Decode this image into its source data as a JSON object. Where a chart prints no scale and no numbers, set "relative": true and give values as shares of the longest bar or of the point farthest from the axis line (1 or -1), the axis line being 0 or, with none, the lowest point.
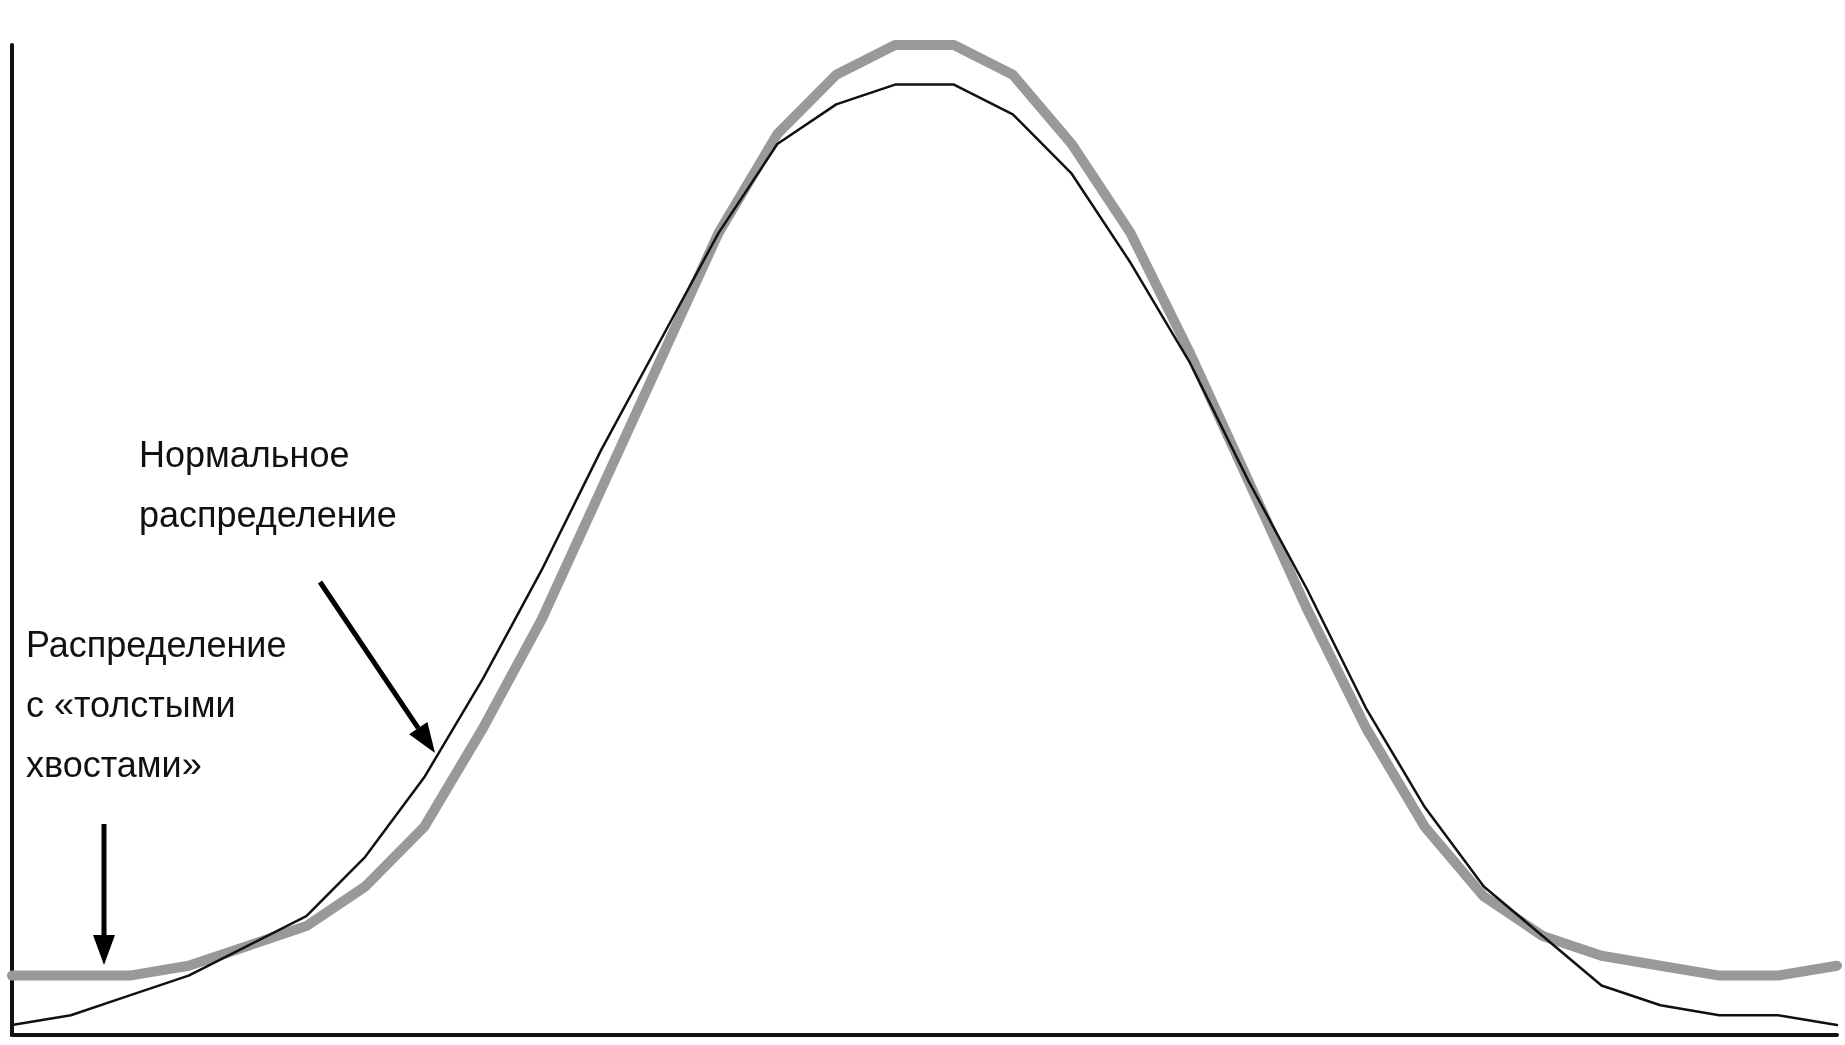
{
  "chart_data": {
    "type": "line",
    "relative": true,
    "marker": "none",
    "grid": false,
    "annotations": [
      "Распределение с «толстыми хвостами»",
      "Нормальное распределение"
    ],
    "categories": [
      null,
      null,
      null,
      null,
      null,
      null,
      null,
      null,
      null,
      null,
      null,
      null,
      null,
      null,
      null,
      null,
      null,
      null,
      null,
      null,
      null,
      null,
      null,
      null,
      null,
      null,
      null,
      null,
      null,
      null,
      null,
      null
    ],
    "series": [
      {
        "color": "#999999",
        "values": [
          0.06,
          0.06,
          0.06,
          0.07,
          0.09,
          0.11,
          0.15,
          0.21,
          0.31,
          0.42,
          0.55,
          0.68,
          0.81,
          0.91,
          0.97,
          1.0,
          1.0,
          0.97,
          0.9,
          0.81,
          0.69,
          0.56,
          0.43,
          0.31,
          0.21,
          0.14,
          0.1,
          0.08,
          0.07,
          0.06,
          0.06,
          0.07
        ]
      },
      {
        "color": "#111111",
        "values": [
          0.01,
          0.02,
          0.04,
          0.06,
          0.09,
          0.12,
          0.18,
          0.26,
          0.36,
          0.47,
          0.59,
          0.7,
          0.81,
          0.9,
          0.94,
          0.96,
          0.96,
          0.93,
          0.87,
          0.78,
          0.68,
          0.56,
          0.45,
          0.33,
          0.23,
          0.15,
          0.1,
          0.05,
          0.03,
          0.02,
          0.02,
          0.01
        ]
      }
    ]
  }
}
